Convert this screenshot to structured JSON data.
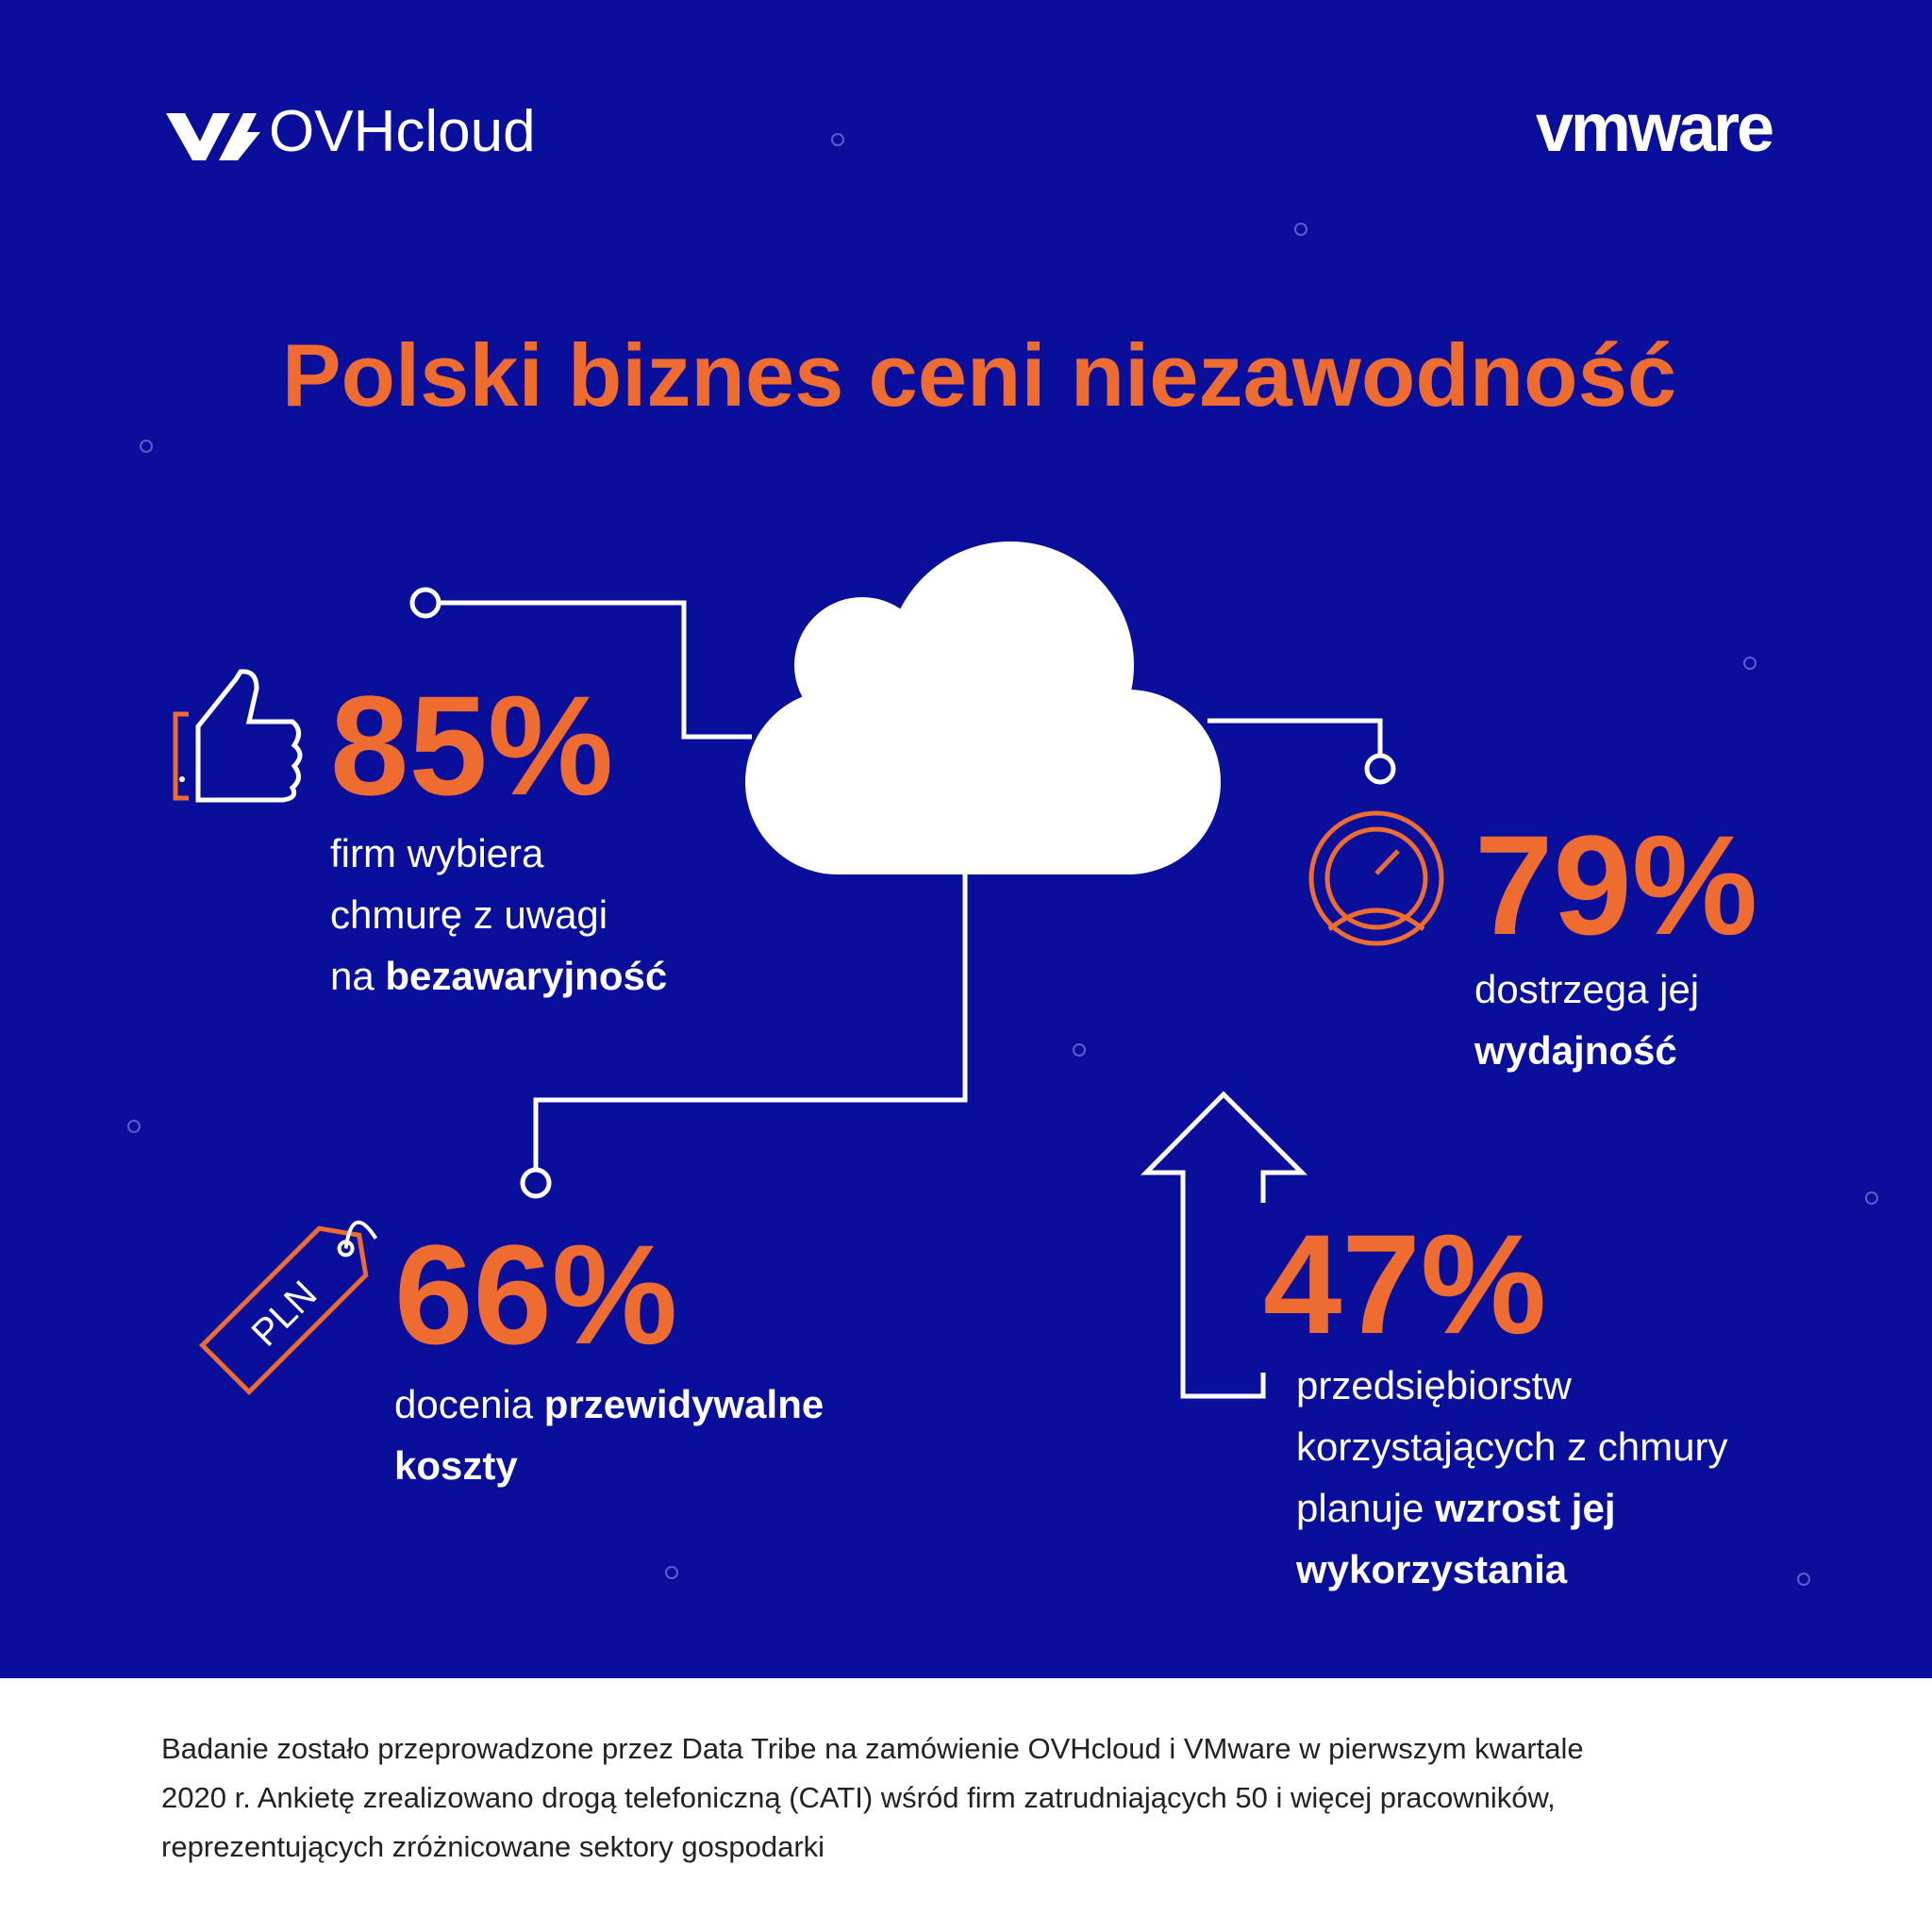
{
  "header": {
    "left_logo": "OVHcloud",
    "right_logo": "vmware"
  },
  "title": "Polski biznes ceni niezawodność",
  "stats": [
    {
      "value": "85%",
      "lines": [
        [
          {
            "text": "firm wybiera",
            "bold": false
          }
        ],
        [
          {
            "text": "chmurę z uwagi",
            "bold": false
          }
        ],
        [
          {
            "text": "na ",
            "bold": false
          },
          {
            "text": "bezawaryjność",
            "bold": true
          }
        ]
      ]
    },
    {
      "value": "79%",
      "lines": [
        [
          {
            "text": "dostrzega jej",
            "bold": false
          }
        ],
        [
          {
            "text": "wydajność",
            "bold": true
          }
        ]
      ]
    },
    {
      "value": "66%",
      "lines": [
        [
          {
            "text": "docenia ",
            "bold": false
          },
          {
            "text": "przewidywalne",
            "bold": true
          }
        ],
        [
          {
            "text": "koszty",
            "bold": true
          }
        ]
      ]
    },
    {
      "value": "47%",
      "lines": [
        [
          {
            "text": "przedsiębiorstw",
            "bold": false
          }
        ],
        [
          {
            "text": "korzystających z chmury",
            "bold": false
          }
        ],
        [
          {
            "text": "planuje ",
            "bold": false
          },
          {
            "text": "wzrost jej",
            "bold": true
          }
        ],
        [
          {
            "text": "wykorzystania",
            "bold": true
          }
        ]
      ]
    }
  ],
  "tag_label": "PLN",
  "footnote": [
    "Badanie zostało przeprowadzone przez Data Tribe na zamówienie OVHcloud i VMware w pierwszym kwartale",
    "2020 r. Ankietę zrealizowano drogą telefoniczną (CATI) wśród firm zatrudniających 50 i więcej pracowników,",
    "reprezentujących zróżnicowane sektory gospodarki"
  ]
}
